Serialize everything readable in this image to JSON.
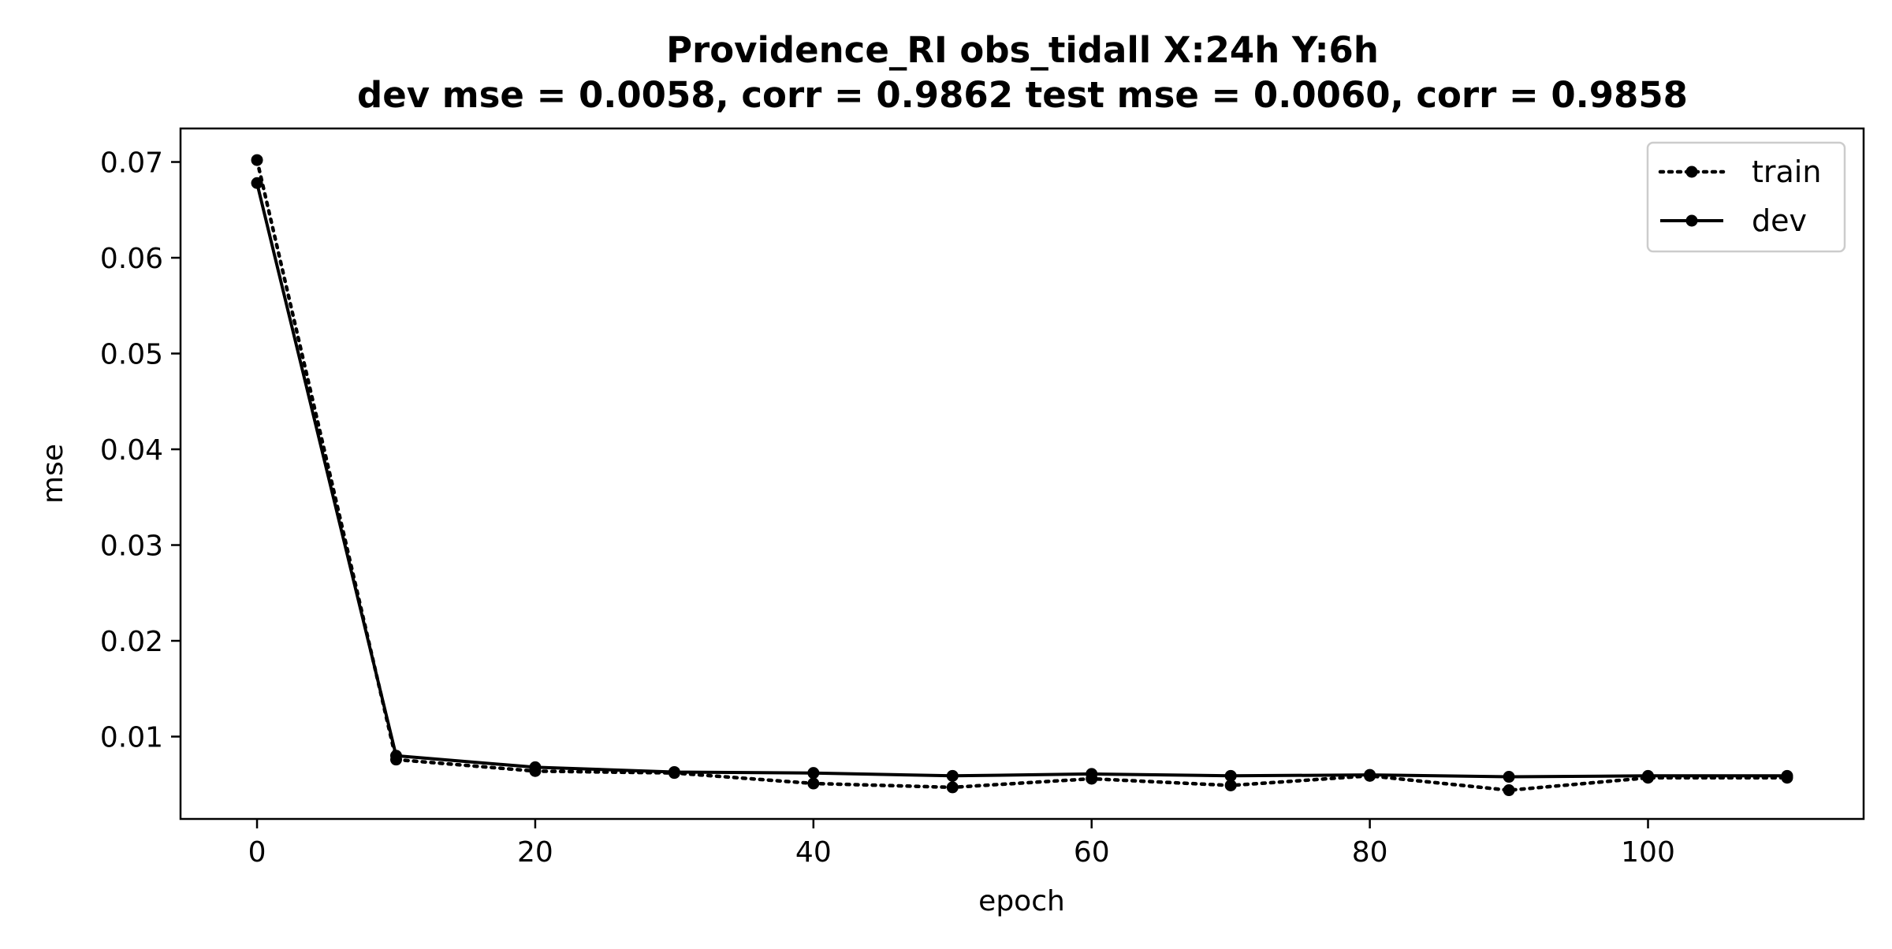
{
  "chart_data": {
    "type": "line",
    "title": "Providence_RI   obs_tidall   X:24h   Y:6h",
    "subtitle": "dev mse = 0.0058, corr = 0.9862   test mse = 0.0060, corr = 0.9858",
    "xlabel": "epoch",
    "ylabel": "mse",
    "xlim": [
      -5.5,
      115.5
    ],
    "ylim": [
      0.0014,
      0.0735
    ],
    "xticks": [
      0,
      20,
      40,
      60,
      80,
      100
    ],
    "yticks": [
      0.01,
      0.02,
      0.03,
      0.04,
      0.05,
      0.06,
      0.07
    ],
    "xtick_labels": [
      "0",
      "20",
      "40",
      "60",
      "80",
      "100"
    ],
    "ytick_labels": [
      "0.01",
      "0.02",
      "0.03",
      "0.04",
      "0.05",
      "0.06",
      "0.07"
    ],
    "grid": false,
    "legend_position": "top-right",
    "x": [
      0,
      10,
      20,
      30,
      40,
      50,
      60,
      70,
      80,
      90,
      100,
      110
    ],
    "series": [
      {
        "name": "train",
        "style": "dotted",
        "color": "#000000",
        "values": [
          0.0702,
          0.0076,
          0.0064,
          0.0062,
          0.0051,
          0.0047,
          0.0056,
          0.0049,
          0.0059,
          0.0044,
          0.0057,
          0.0057
        ]
      },
      {
        "name": "dev",
        "style": "solid",
        "color": "#000000",
        "values": [
          0.0678,
          0.008,
          0.0068,
          0.0063,
          0.0062,
          0.0059,
          0.0061,
          0.0059,
          0.006,
          0.0058,
          0.0059,
          0.0059
        ]
      }
    ]
  }
}
